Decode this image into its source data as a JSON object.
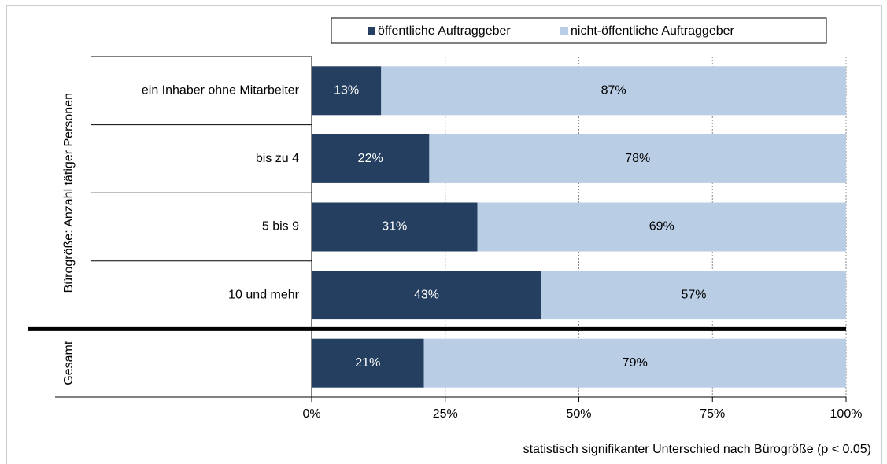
{
  "chart_data": {
    "type": "stacked_barh",
    "categories": [
      "ein Inhaber ohne Mitarbeiter",
      "bis zu 4",
      "5 bis 9",
      "10 und mehr",
      null
    ],
    "groups": [
      {
        "label": "Bürogröße: Anzahl tätiger Personen",
        "rows": [
          0,
          1,
          2,
          3
        ]
      },
      {
        "label": "Gesamt",
        "rows": [
          4
        ]
      }
    ],
    "series": [
      {
        "name": "öffentliche Auftraggeber",
        "color": "#243f60",
        "values": [
          13,
          22,
          31,
          43,
          21
        ],
        "value_labels": [
          "13%",
          "22%",
          "31%",
          "43%",
          "21%"
        ]
      },
      {
        "name": "nicht-öffentliche Auftraggeber",
        "color": "#b9cde5",
        "values": [
          87,
          78,
          69,
          57,
          79
        ],
        "value_labels": [
          "87%",
          "78%",
          "69%",
          "57%",
          "79%"
        ]
      }
    ],
    "xlim": [
      0,
      100
    ],
    "xticks": [
      {
        "value": 0,
        "label": "0%"
      },
      {
        "value": 25,
        "label": "25%"
      },
      {
        "value": 50,
        "label": "50%"
      },
      {
        "value": 75,
        "label": "75%"
      },
      {
        "value": 100,
        "label": "100%"
      }
    ],
    "grid": true,
    "legend": "top",
    "annotation": "statistisch signifikanter Unterschied nach Bürogröße (p < 0.05)"
  }
}
